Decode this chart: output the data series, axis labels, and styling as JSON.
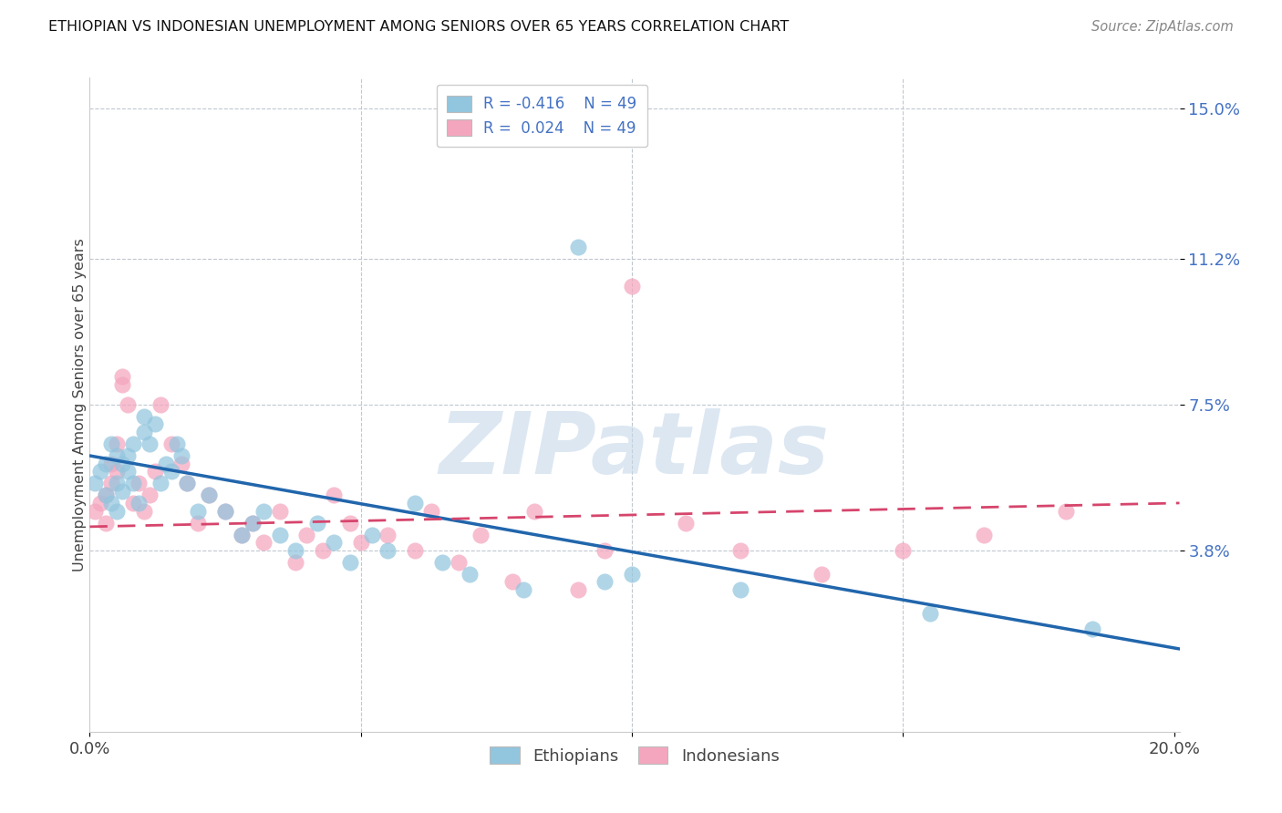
{
  "title": "ETHIOPIAN VS INDONESIAN UNEMPLOYMENT AMONG SENIORS OVER 65 YEARS CORRELATION CHART",
  "source": "Source: ZipAtlas.com",
  "ylabel": "Unemployment Among Seniors over 65 years",
  "xlim": [
    0.0,
    0.201
  ],
  "ylim": [
    -0.008,
    0.158
  ],
  "yticks": [
    0.038,
    0.075,
    0.112,
    0.15
  ],
  "ytick_labels": [
    "3.8%",
    "7.5%",
    "11.2%",
    "15.0%"
  ],
  "xticks": [
    0.0,
    0.05,
    0.1,
    0.15,
    0.2
  ],
  "xtick_labels": [
    "0.0%",
    "",
    "",
    "",
    "20.0%"
  ],
  "legend_labels": [
    "R = -0.416    N = 49",
    "R =  0.024    N = 49"
  ],
  "legend_bottom_labels": [
    "Ethiopians",
    "Indonesians"
  ],
  "blue_color": "#92c5de",
  "pink_color": "#f4a6be",
  "blue_line_color": "#2166ac",
  "pink_line_color": "#d6456c",
  "watermark": "ZIPatlas",
  "eth_x": [
    0.001,
    0.002,
    0.003,
    0.003,
    0.004,
    0.004,
    0.005,
    0.005,
    0.005,
    0.006,
    0.006,
    0.007,
    0.007,
    0.008,
    0.008,
    0.009,
    0.01,
    0.01,
    0.011,
    0.012,
    0.013,
    0.014,
    0.015,
    0.016,
    0.017,
    0.018,
    0.02,
    0.022,
    0.025,
    0.028,
    0.03,
    0.032,
    0.035,
    0.038,
    0.042,
    0.045,
    0.048,
    0.052,
    0.055,
    0.06,
    0.065,
    0.07,
    0.08,
    0.09,
    0.095,
    0.1,
    0.12,
    0.155,
    0.185
  ],
  "eth_y": [
    0.055,
    0.058,
    0.052,
    0.06,
    0.05,
    0.065,
    0.048,
    0.055,
    0.062,
    0.053,
    0.06,
    0.058,
    0.062,
    0.055,
    0.065,
    0.05,
    0.068,
    0.072,
    0.065,
    0.07,
    0.055,
    0.06,
    0.058,
    0.065,
    0.062,
    0.055,
    0.048,
    0.052,
    0.048,
    0.042,
    0.045,
    0.048,
    0.042,
    0.038,
    0.045,
    0.04,
    0.035,
    0.042,
    0.038,
    0.05,
    0.035,
    0.032,
    0.028,
    0.115,
    0.03,
    0.032,
    0.028,
    0.022,
    0.018
  ],
  "ind_x": [
    0.001,
    0.002,
    0.003,
    0.003,
    0.004,
    0.004,
    0.005,
    0.005,
    0.006,
    0.006,
    0.007,
    0.008,
    0.009,
    0.01,
    0.011,
    0.012,
    0.013,
    0.015,
    0.017,
    0.018,
    0.02,
    0.022,
    0.025,
    0.028,
    0.03,
    0.032,
    0.035,
    0.038,
    0.04,
    0.043,
    0.045,
    0.048,
    0.05,
    0.055,
    0.06,
    0.063,
    0.068,
    0.072,
    0.078,
    0.082,
    0.09,
    0.095,
    0.1,
    0.11,
    0.12,
    0.135,
    0.15,
    0.165,
    0.18
  ],
  "ind_y": [
    0.048,
    0.05,
    0.052,
    0.045,
    0.06,
    0.055,
    0.065,
    0.058,
    0.082,
    0.08,
    0.075,
    0.05,
    0.055,
    0.048,
    0.052,
    0.058,
    0.075,
    0.065,
    0.06,
    0.055,
    0.045,
    0.052,
    0.048,
    0.042,
    0.045,
    0.04,
    0.048,
    0.035,
    0.042,
    0.038,
    0.052,
    0.045,
    0.04,
    0.042,
    0.038,
    0.048,
    0.035,
    0.042,
    0.03,
    0.048,
    0.028,
    0.038,
    0.105,
    0.045,
    0.038,
    0.032,
    0.038,
    0.042,
    0.048
  ]
}
